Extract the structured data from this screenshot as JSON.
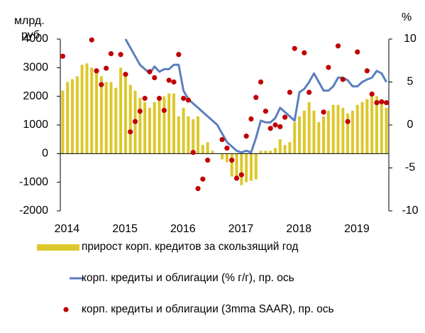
{
  "chart_data": {
    "type": "combo",
    "y_label": [
      "млрд.",
      "руб"
    ],
    "y2_label": "%",
    "categories": [
      "2014",
      null,
      null,
      null,
      null,
      null,
      null,
      null,
      null,
      null,
      null,
      null,
      "2015",
      null,
      null,
      null,
      null,
      null,
      null,
      null,
      null,
      null,
      null,
      null,
      "2016",
      null,
      null,
      null,
      null,
      null,
      null,
      null,
      null,
      null,
      null,
      null,
      "2017",
      null,
      null,
      null,
      null,
      null,
      null,
      null,
      null,
      null,
      null,
      null,
      "2018",
      null,
      null,
      null,
      null,
      null,
      null,
      null,
      null,
      null,
      null,
      null,
      "2019",
      null,
      null,
      null,
      null,
      null,
      null,
      null
    ],
    "ylim": [
      -2000,
      4000
    ],
    "yticks": [
      -2000,
      -1000,
      0,
      1000,
      2000,
      3000,
      4000
    ],
    "y2lim": [
      -10,
      10
    ],
    "y2ticks": [
      -10,
      -5,
      0,
      5,
      10
    ],
    "series": [
      {
        "name": "прирост корп. кредитов за скользящий год",
        "type": "bar",
        "color": "#dcc82c",
        "values": [
          2200,
          2500,
          2600,
          2700,
          3100,
          3150,
          3000,
          2900,
          2700,
          2500,
          2500,
          2300,
          3000,
          2800,
          2400,
          2200,
          1950,
          1800,
          1600,
          1800,
          1900,
          2000,
          2100,
          2100,
          1300,
          1600,
          1300,
          1200,
          1300,
          300,
          400,
          100,
          0,
          -200,
          -300,
          -800,
          -900,
          -1100,
          -1000,
          -950,
          -900,
          100,
          100,
          100,
          200,
          500,
          300,
          400,
          1100,
          1300,
          1500,
          1800,
          1500,
          1100,
          1300,
          1500,
          1700,
          1700,
          1600,
          1400,
          1500,
          1700,
          1800,
          1900,
          2100,
          2000,
          1800,
          1600
        ]
      },
      {
        "name": "корп. кредиты и облигации (% г/г), пр. ось",
        "type": "line",
        "axis": "y2",
        "color": "#5b7fbf",
        "values": [
          null,
          null,
          null,
          null,
          null,
          null,
          null,
          null,
          null,
          null,
          null,
          null,
          null,
          10,
          9,
          8,
          7,
          6.5,
          6,
          6.8,
          6.2,
          6.5,
          6.5,
          7,
          7,
          4,
          3,
          2.5,
          2,
          1.5,
          1,
          0.5,
          0,
          -1,
          -2,
          -2.5,
          -3,
          -3.2,
          -3,
          -3.2,
          -1.5,
          0.5,
          0.3,
          0.3,
          0.8,
          2,
          1.5,
          1,
          0.5,
          3.8,
          4.2,
          5,
          6,
          5,
          4,
          4,
          4.5,
          5.5,
          5.5,
          5.2,
          4.5,
          4.5,
          5,
          5.3,
          5.5,
          6.3,
          6,
          5
        ]
      },
      {
        "name": "корп. кредиты и облигации (3mma SAAR), пр. ось",
        "type": "scatter",
        "axis": "y2",
        "color": "#c00000",
        "values": [
          8.0,
          null,
          null,
          null,
          null,
          null,
          9.9,
          6.3,
          4.7,
          6.6,
          8.3,
          null,
          8.2,
          5.9,
          -0.8,
          0.4,
          1.6,
          3.1,
          6.2,
          5.5,
          3.1,
          1.7,
          5.2,
          5.0,
          8.2,
          3.1,
          2.9,
          -3.2,
          -7.4,
          -6.3,
          -4.1,
          null,
          null,
          -1.7,
          -2.7,
          -4.1,
          -6.2,
          -5.8,
          -1.3,
          0.7,
          3.2,
          5.0,
          1.6,
          -0.4,
          0.0,
          -0.2,
          0.9,
          3.8,
          8.9,
          null,
          8.4,
          3.8,
          null,
          null,
          1.5,
          6.7,
          null,
          9.2,
          5.3,
          0.4,
          null,
          8.5,
          null,
          6.3,
          3.6,
          2.6,
          2.7,
          2.6
        ]
      }
    ]
  }
}
